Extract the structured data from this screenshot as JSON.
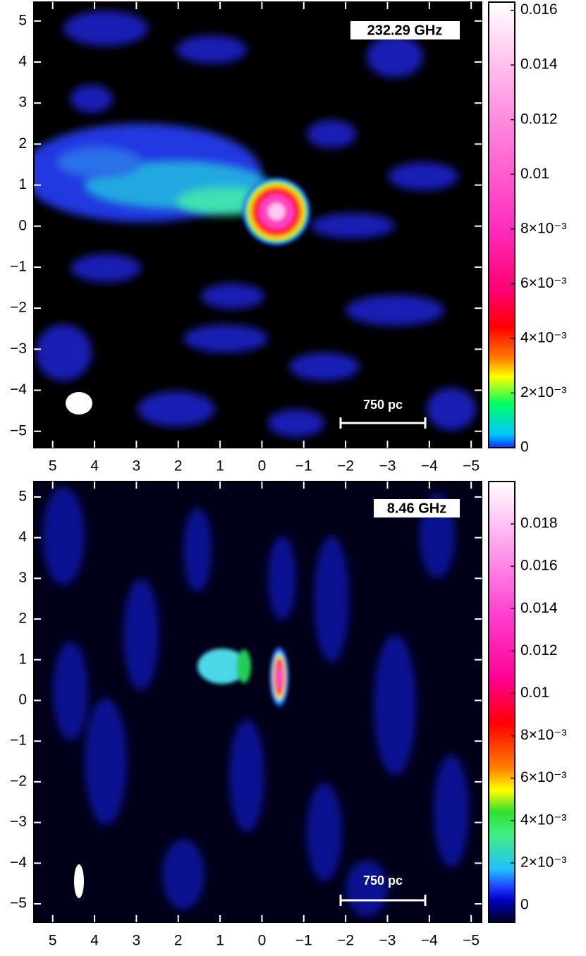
{
  "chart_data": [
    {
      "type": "image",
      "annotation": "232.29 GHz",
      "scalebar_label": "750 pc",
      "xlim": [
        5.45,
        -5.25
      ],
      "ylim": [
        -5.4,
        5.46
      ],
      "xticks": [
        5,
        4,
        3,
        2,
        1,
        0,
        {
          "value": -1,
          "label": "−1"
        },
        {
          "value": -2,
          "label": "−2"
        },
        {
          "value": -3,
          "label": "−3"
        },
        {
          "value": -4,
          "label": "−4"
        },
        {
          "value": -5,
          "label": "−5"
        }
      ],
      "yticks": [
        {
          "value": -5,
          "label": "−5"
        },
        {
          "value": -4,
          "label": "−4"
        },
        {
          "value": -3,
          "label": "−3"
        },
        {
          "value": -2,
          "label": "−2"
        },
        {
          "value": -1,
          "label": "−1"
        },
        0,
        1,
        2,
        3,
        4,
        5
      ],
      "colorbar": {
        "lim": [
          0,
          0.0163
        ],
        "ticks": [
          0,
          {
            "value": 0.002,
            "label": "2×10⁻³"
          },
          {
            "value": 0.004,
            "label": "4×10⁻³"
          },
          {
            "value": 0.006,
            "label": "6×10⁻³"
          },
          {
            "value": 0.008,
            "label": "8×10⁻³"
          },
          0.01,
          0.012,
          0.014,
          0.016
        ]
      }
    },
    {
      "type": "image",
      "annotation": "8.46 GHz",
      "scalebar_label": "750 pc",
      "xlim": [
        5.45,
        -5.25
      ],
      "ylim": [
        -5.45,
        5.38
      ],
      "xticks": [
        5,
        4,
        3,
        2,
        1,
        0,
        {
          "value": -1,
          "label": "−1"
        },
        {
          "value": -2,
          "label": "−2"
        },
        {
          "value": -3,
          "label": "−3"
        },
        {
          "value": -4,
          "label": "−4"
        },
        {
          "value": -5,
          "label": "−5"
        }
      ],
      "yticks": [
        {
          "value": -5,
          "label": "−5"
        },
        {
          "value": -4,
          "label": "−4"
        },
        {
          "value": -3,
          "label": "−3"
        },
        {
          "value": -2,
          "label": "−2"
        },
        {
          "value": -1,
          "label": "−1"
        },
        0,
        1,
        2,
        3,
        4,
        5
      ],
      "colorbar": {
        "lim": [
          -0.0008,
          0.02
        ],
        "ticks": [
          0,
          {
            "value": 0.002,
            "label": "2×10⁻³"
          },
          {
            "value": 0.004,
            "label": "4×10⁻³"
          },
          {
            "value": 0.006,
            "label": "6×10⁻³"
          },
          {
            "value": 0.008,
            "label": "8×10⁻³"
          },
          0.01,
          0.012,
          0.014,
          0.016,
          0.018
        ]
      }
    }
  ]
}
